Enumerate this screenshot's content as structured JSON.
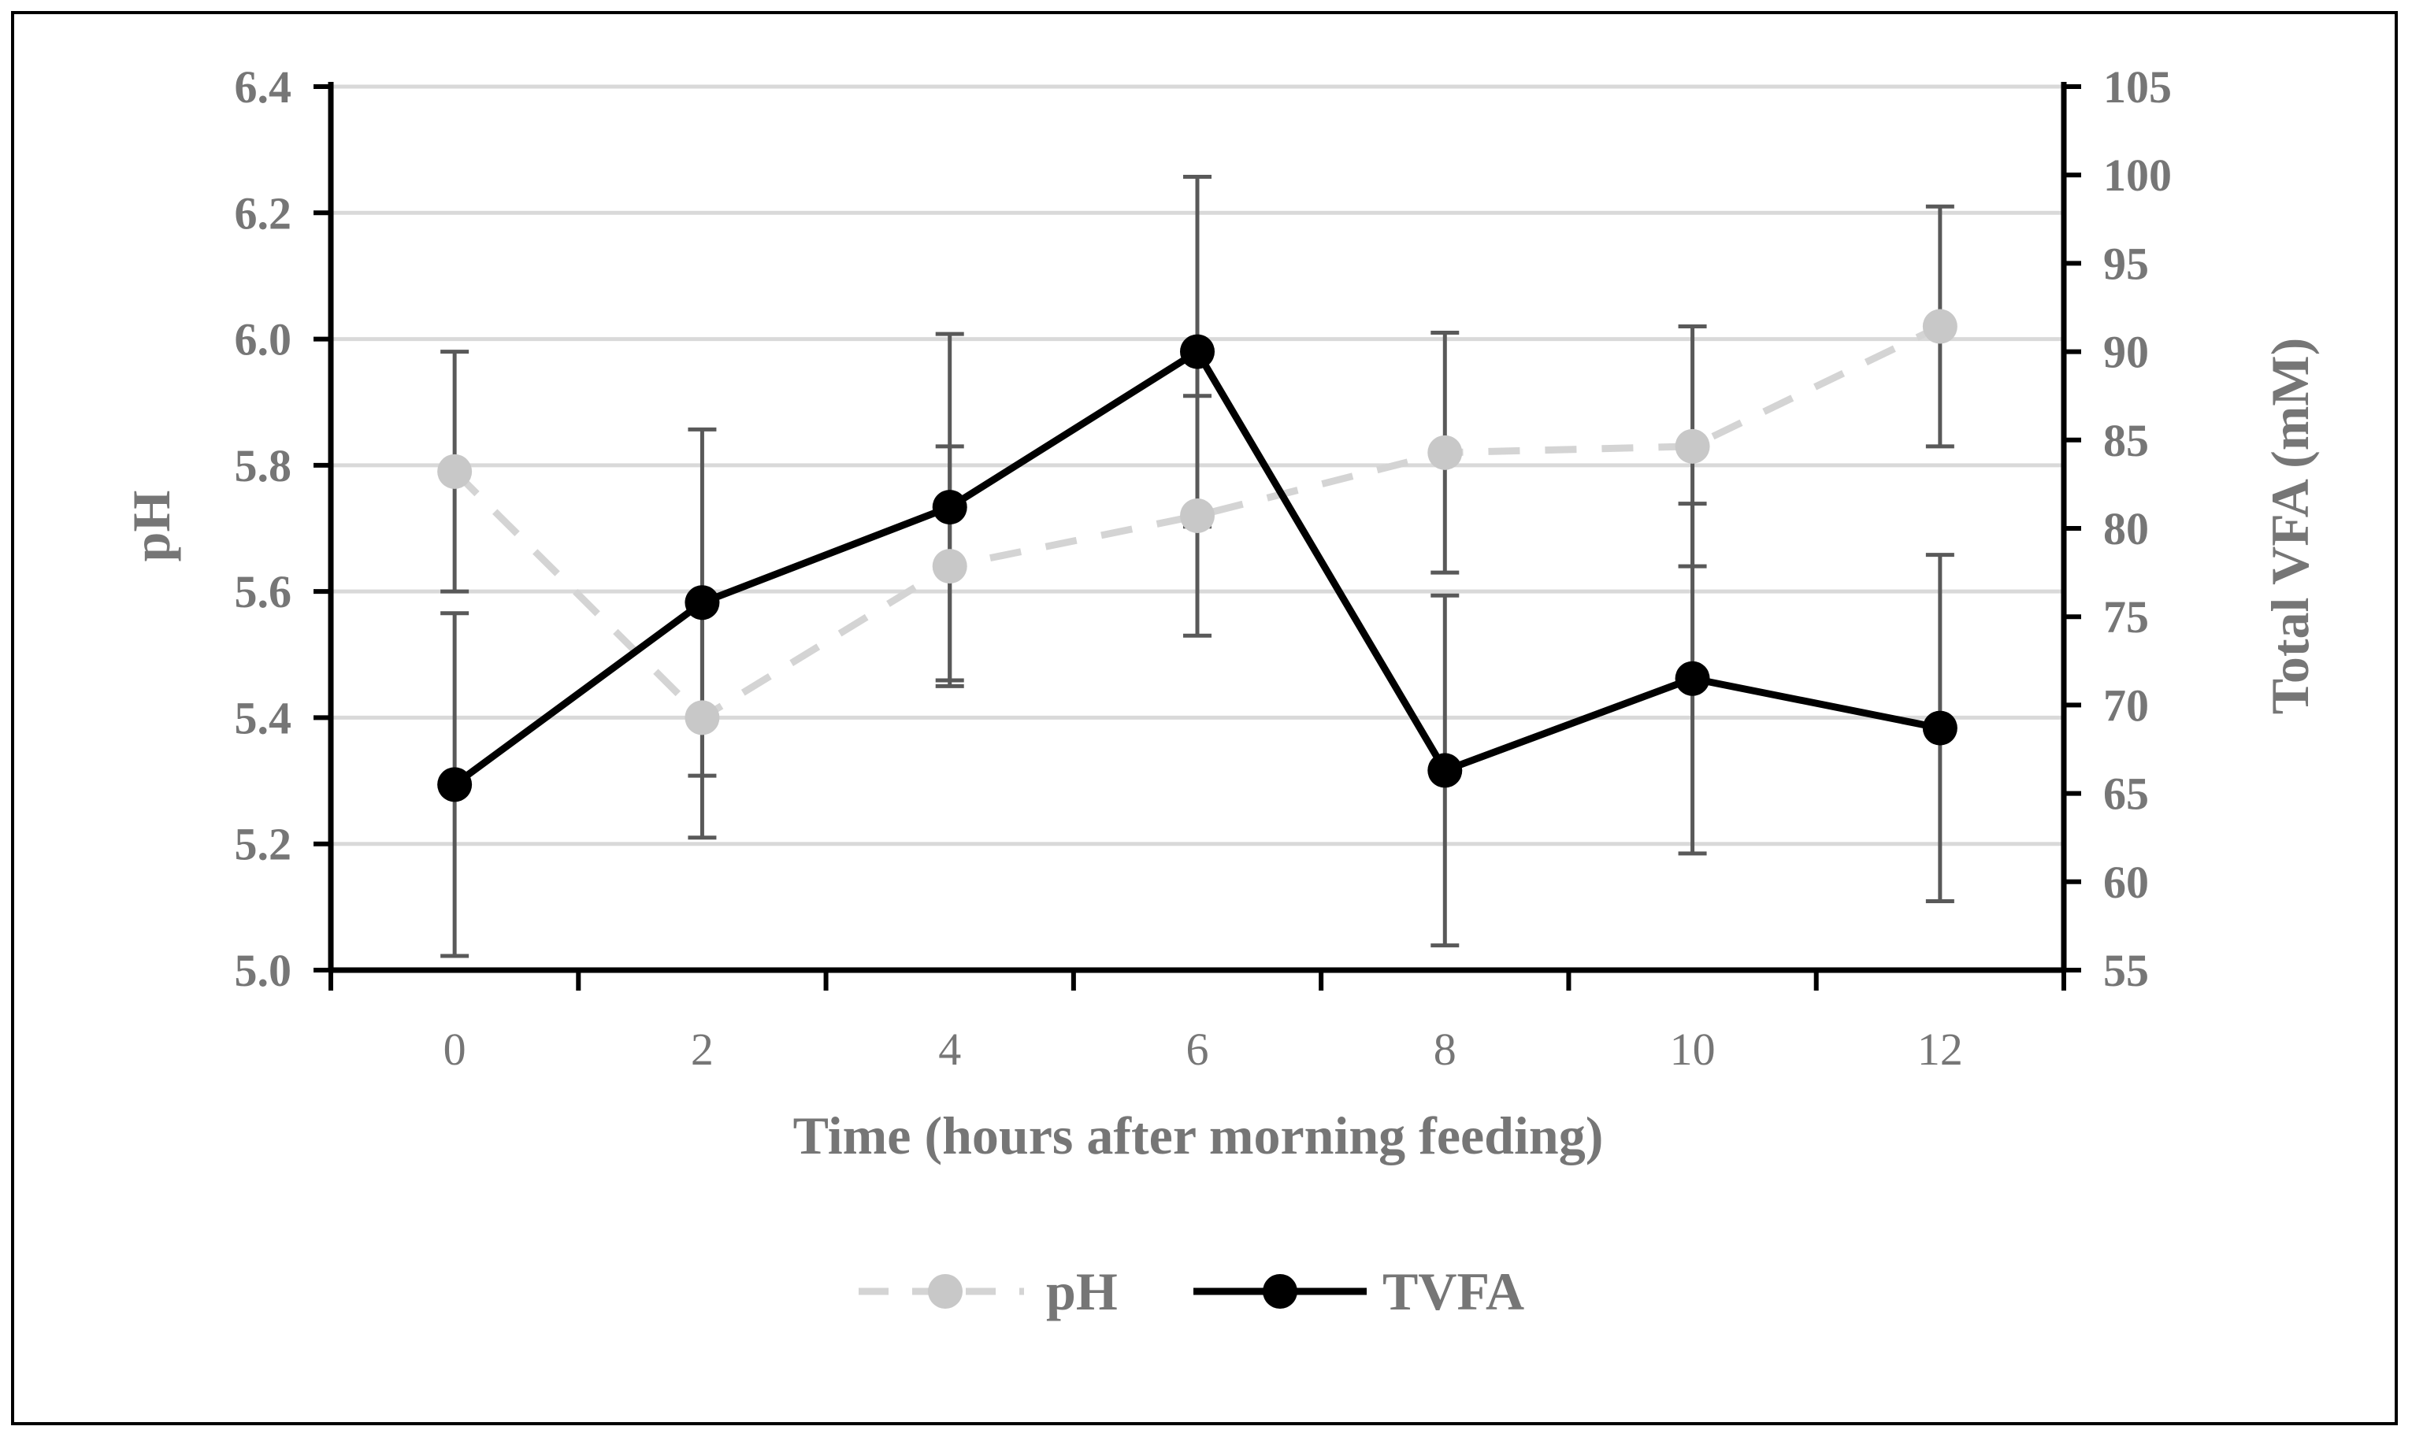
{
  "chart_data": {
    "type": "line",
    "x": [
      0,
      2,
      4,
      6,
      8,
      10,
      12
    ],
    "xlabel": "Time (hours after morning feeding)",
    "ylabel_left": "pH",
    "ylabel_right": "Total VFA (mM)",
    "ylim_left": [
      5.0,
      6.4
    ],
    "ylim_right": [
      55,
      105
    ],
    "yticks_left": [
      "5.0",
      "5.2",
      "5.4",
      "5.6",
      "5.8",
      "6.0",
      "6.2",
      "6.4"
    ],
    "yticks_right": [
      "55",
      "60",
      "65",
      "70",
      "75",
      "80",
      "85",
      "90",
      "95",
      "100",
      "105"
    ],
    "xticks": [
      "0",
      "2",
      "4",
      "6",
      "8",
      "10",
      "12"
    ],
    "grid": true,
    "legend_position": "bottom",
    "series": [
      {
        "name": "pH",
        "axis": "left",
        "style": "dashed",
        "color": "#c8c8c8",
        "values": [
          5.79,
          5.4,
          5.64,
          5.72,
          5.82,
          5.83,
          6.02
        ],
        "error": [
          0.19,
          0.19,
          0.19,
          0.19,
          0.19,
          0.19,
          0.19
        ]
      },
      {
        "name": "TVFA",
        "axis": "right",
        "style": "solid",
        "color": "#000000",
        "values": [
          65.5,
          75.8,
          81.2,
          90.0,
          66.3,
          71.5,
          68.7
        ],
        "error": [
          9.7,
          9.8,
          9.8,
          9.9,
          9.9,
          9.9,
          9.8
        ]
      }
    ]
  },
  "colors": {
    "axis": "#000000",
    "grid": "#d9d9d9",
    "tick_text": "#767676",
    "error_bar": "#595959"
  }
}
